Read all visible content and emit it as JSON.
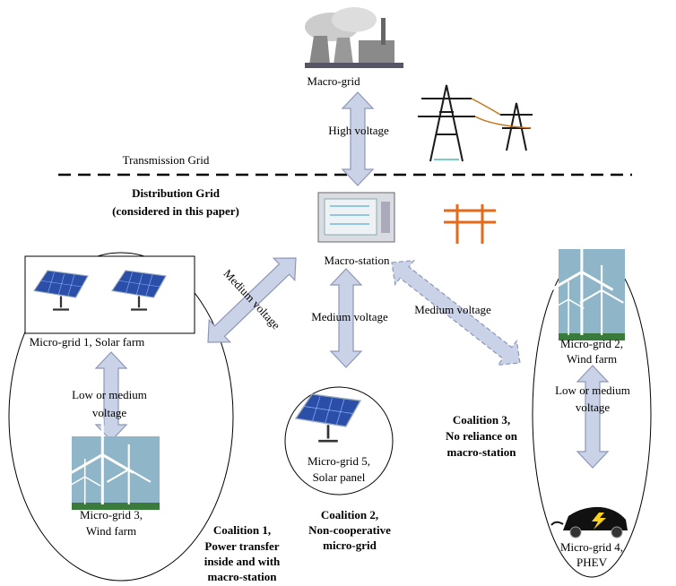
{
  "top": {
    "macro_grid": "Macro-grid",
    "high_voltage": "High voltage",
    "transmission_grid": "Transmission Grid",
    "distribution_grid": [
      "Distribution Grid",
      "(considered in this paper)"
    ],
    "macro_station": "Macro-station"
  },
  "links": {
    "diag_left": "Medium voltage",
    "center": "Medium voltage",
    "diag_right": "Medium voltage",
    "left_inner": [
      "Low or medium",
      "voltage"
    ],
    "right_inner": [
      "Low or medium",
      "voltage"
    ]
  },
  "nodes": {
    "micro_grid_1": "Micro-grid 1, Solar farm",
    "micro_grid_3": [
      "Micro-grid 3,",
      "Wind farm"
    ],
    "micro_grid_5": [
      "Micro-grid 5,",
      "Solar panel"
    ],
    "micro_grid_2": [
      "Micro-grid 2,",
      "Wind farm"
    ],
    "micro_grid_4": [
      "Micro-grid 4,",
      "PHEV"
    ]
  },
  "coalitions": {
    "coalition_1": [
      "Coalition 1,",
      "Power transfer",
      "inside and  with",
      "macro-station"
    ],
    "coalition_2": [
      "Coalition 2,",
      "Non-cooperative",
      "micro-grid"
    ],
    "coalition_3": [
      "Coalition 3,",
      "No reliance on",
      "macro-station"
    ]
  }
}
